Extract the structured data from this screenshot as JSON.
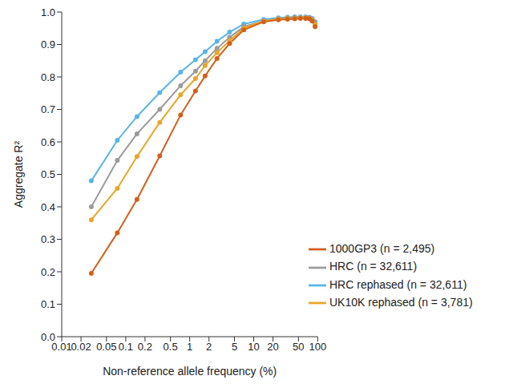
{
  "chart_data": {
    "type": "line",
    "x_label": "Non-reference allele frequency (%)",
    "y_label": "Aggregate R²",
    "log": "x",
    "grid": false,
    "legend": "lower right",
    "marker": "circle",
    "xlim": [
      0.01,
      100
    ],
    "xticks": [
      0.01,
      0.02,
      0.05,
      0.1,
      0.2,
      0.5,
      1,
      2,
      5,
      10,
      20,
      50,
      100
    ],
    "ylim": [
      0,
      1
    ],
    "yticks": [
      {
        "value": 0,
        "label": "0.0"
      },
      0.1,
      0.2,
      0.3,
      0.4,
      0.5,
      0.6,
      0.7,
      0.8,
      0.9,
      {
        "value": 1,
        "label": "1.0"
      }
    ],
    "x": [
      0.029,
      0.074,
      0.15,
      0.34,
      0.72,
      1.23,
      1.74,
      2.67,
      4.2,
      7.0,
      14.3,
      24.3,
      33.7,
      43.7,
      53.7,
      64.7,
      74.3,
      82,
      91
    ],
    "series": [
      {
        "name": "HRC rephased (n = 32,611)",
        "color": "#5ab4e5",
        "values": [
          0.48,
          0.605,
          0.678,
          0.752,
          0.815,
          0.853,
          0.878,
          0.91,
          0.938,
          0.963,
          0.977,
          0.982,
          0.984,
          0.985,
          0.985,
          0.985,
          0.984,
          0.98,
          0.97
        ]
      },
      {
        "name": "HRC (n = 32,611)",
        "color": "#9b9b9b",
        "values": [
          0.4,
          0.543,
          0.625,
          0.7,
          0.773,
          0.818,
          0.85,
          0.888,
          0.922,
          0.955,
          0.972,
          0.98,
          0.982,
          0.983,
          0.983,
          0.983,
          0.982,
          0.978,
          0.965
        ]
      },
      {
        "name": "UK10K rephased (n = 3,781)",
        "color": "#e8a628",
        "values": [
          0.36,
          0.457,
          0.555,
          0.66,
          0.745,
          0.795,
          0.835,
          0.875,
          0.912,
          0.95,
          0.972,
          0.978,
          0.98,
          0.981,
          0.982,
          0.982,
          0.98,
          0.975,
          0.962
        ]
      },
      {
        "name": "1000GP3 (n = 2,495)",
        "color": "#d2601a",
        "values": [
          0.195,
          0.32,
          0.423,
          0.557,
          0.683,
          0.757,
          0.803,
          0.857,
          0.903,
          0.945,
          0.97,
          0.976,
          0.978,
          0.979,
          0.98,
          0.98,
          0.979,
          0.972,
          0.955
        ]
      }
    ]
  }
}
